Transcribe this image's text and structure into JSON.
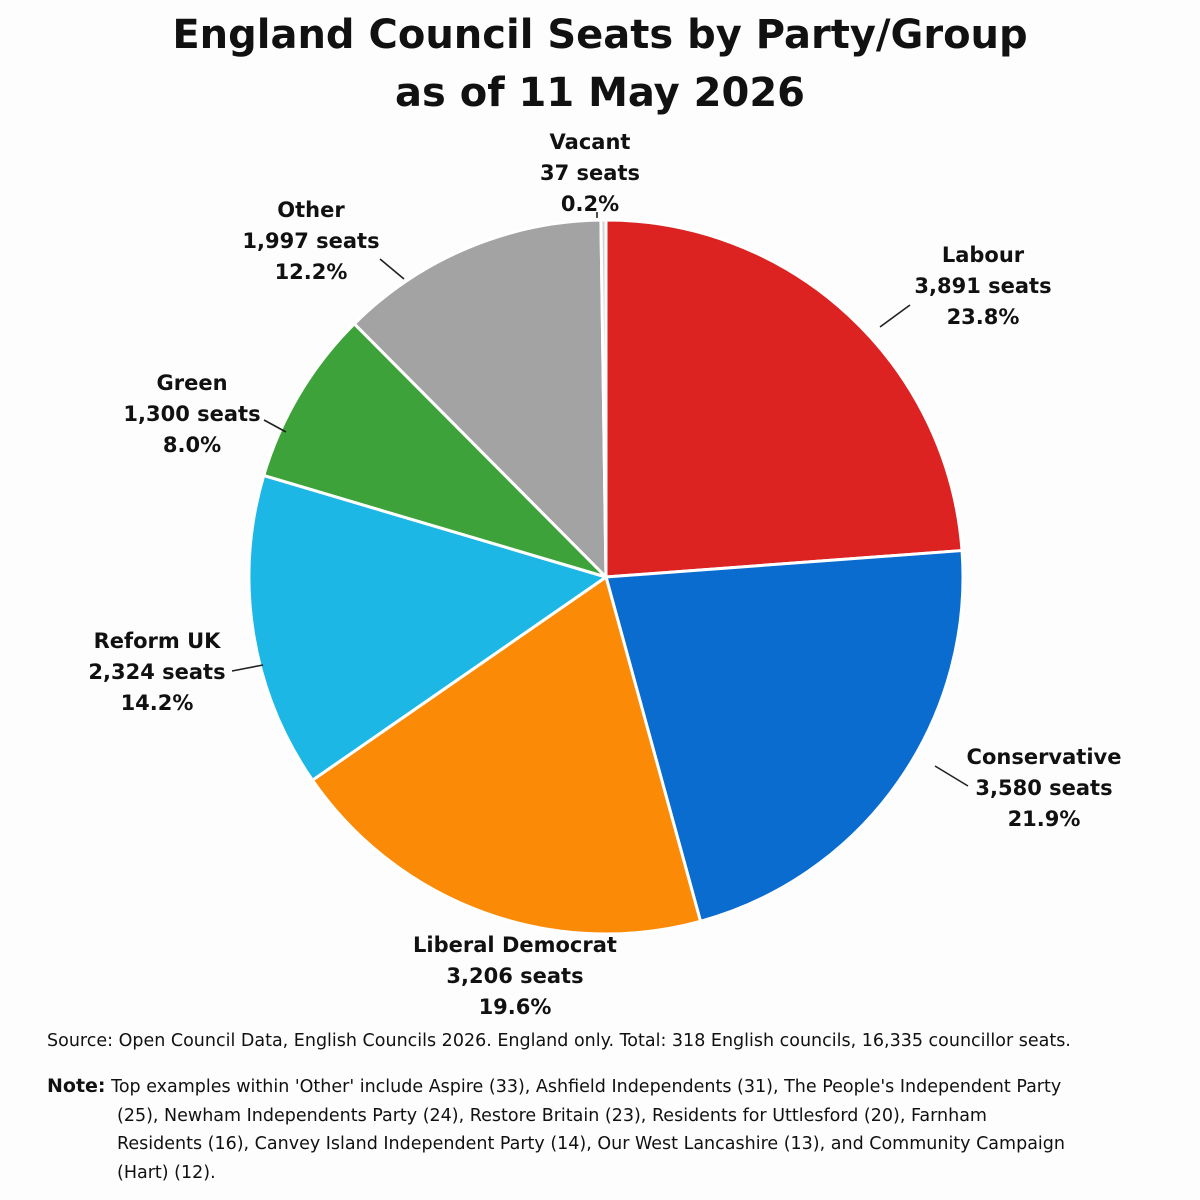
{
  "title_line1": "England Council Seats by Party/Group",
  "title_line2": "as of 11 May 2026",
  "source": "Source: Open Council Data, English Councils 2026.  England only.  Total: 318 English councils, 16,335 councillor seats.",
  "note_label": "Note:",
  "note_text": "Top examples within 'Other' include Aspire (33), Ashfield Independents (31), The People's Independent Party (25), Newham Independents Party (24), Restore Britain (23), Residents for Uttlesford (20), Farnham Residents (16), Canvey Island Independent Party (14), Our West Lancashire (13), and Community Campaign (Hart) (12).",
  "chart_data": {
    "type": "pie",
    "title": "England Council Seats by Party/Group as of 11 May 2026",
    "total_seats": 16335,
    "slices": [
      {
        "name": "Labour",
        "seats": 3891,
        "seats_label": "3,891 seats",
        "percent": 23.8,
        "percent_label": "23.8%",
        "color": "#dd2222"
      },
      {
        "name": "Conservative",
        "seats": 3580,
        "seats_label": "3,580 seats",
        "percent": 21.9,
        "percent_label": "21.9%",
        "color": "#0a6ccf"
      },
      {
        "name": "Liberal Democrat",
        "seats": 3206,
        "seats_label": "3,206 seats",
        "percent": 19.6,
        "percent_label": "19.6%",
        "color": "#fb8a07"
      },
      {
        "name": "Reform UK",
        "seats": 2324,
        "seats_label": "2,324 seats",
        "percent": 14.2,
        "percent_label": "14.2%",
        "color": "#1cb7e5"
      },
      {
        "name": "Green",
        "seats": 1300,
        "seats_label": "1,300 seats",
        "percent": 8.0,
        "percent_label": "8.0%",
        "color": "#3ea23a"
      },
      {
        "name": "Other",
        "seats": 1997,
        "seats_label": "1,997 seats",
        "percent": 12.2,
        "percent_label": "12.2%",
        "color": "#a3a3a3"
      },
      {
        "name": "Vacant",
        "seats": 37,
        "seats_label": "37 seats",
        "percent": 0.2,
        "percent_label": "0.2%",
        "color": "#d3d3d3"
      }
    ]
  }
}
